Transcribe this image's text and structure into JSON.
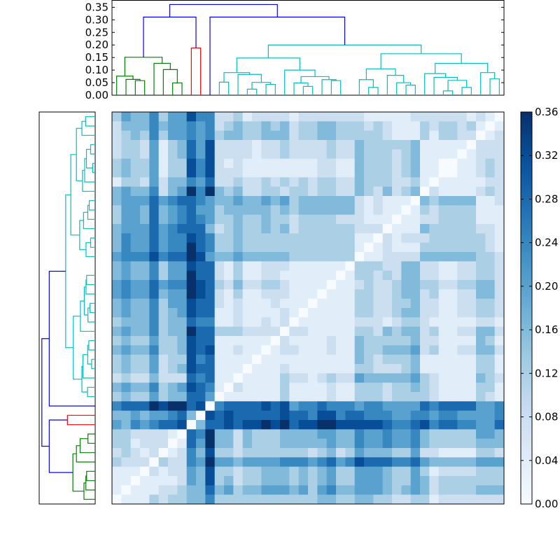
{
  "chart_data": {
    "type": "heatmap",
    "title": "",
    "description_free": true,
    "n_leaves": 42,
    "value_step": 0.04,
    "colormap": [
      "#f7fbff",
      "#deebf7",
      "#c6dbef",
      "#9ecae1",
      "#6baed6",
      "#4292c6",
      "#2171b5",
      "#08519c",
      "#08306b"
    ],
    "vmin": 0.0,
    "vmax": 0.36,
    "matrix_levels": [
      "354463558662231222212222222111112222221210",
      "244464556562343343423344333232111323323101",
      "234363556563443344423344333332111313322012",
      "233251347582222122322223224333334111110222",
      "233251347582222122322223224333234111101222",
      "343351338682121111111122114333234110011232",
      "343351338682221111111122114333234110011232",
      "133252446572232232323233224333223101111122",
      "454462459694342233233233224324234021111232",
      "455575677654454454534444442121110434444112",
      "355474567553444443434444442121101323333111",
      "355474567653343343323333222111011223333111",
      "455575677742343343423333332220111433333221",
      "465575668763343333333333331102122233333321",
      "465575669763343333333333331012111333333321",
      "566686779854454444433333330112222444444332",
      "454463558772131122211111103332244221122332",
      "454463559772131122111111013323244221122332",
      "565575669873242233211110112322344332233442",
      "565574559872131122211101113322344231122442",
      "454463558772121112111011113322334221122332",
      "454463458771121111210111113322344221122332",
      "344463447661121121201111112221233211111221",
      "454463449773332222022111113324344231122442",
      "343353348771111110211112114333334221111431",
      "454463348781121101221112114334445231122442",
      "343352338671111011111111114323334111111331",
      "343352348771110111211111113322234111111331",
      "232242227671101111322123225444445321111432",
      "454463458761021111311112113332334321111331",
      "343353447750111111311112113332333321111321",
      "677798997806777787856676665665555767777556",
      "445455674087877777877688677666556656655556",
      "546567780477878898978899888887667867766557",
      "332222107694424333444455446556556433333554",
      "331222017594424333444445446556556433333444",
      "232120126483323333333234235444335221111332",
      "322203226595545555666567568777667544444555",
      "111021225483323344434345335554335312222333",
      "110111125483423344434345335554335423333333",
      "101112234474534455545356445554345423333444",
      "011132334463333333333344334433223312222222"
    ],
    "dendrogram": {
      "height_range": [
        0,
        0.379
      ],
      "colors": {
        "g": "#008000",
        "r": "#ff0000",
        "c": "#00bfbf",
        "b": "#0000ff"
      },
      "links": [
        [
          2,
          3,
          0,
          0,
          0.058,
          "g"
        ],
        [
          1,
          2.5,
          0,
          0.058,
          0.063,
          "g"
        ],
        [
          0,
          1.75,
          0,
          0.063,
          0.076,
          "g"
        ],
        [
          6,
          7,
          0,
          0,
          0.049,
          "g"
        ],
        [
          5,
          6.5,
          0,
          0.049,
          0.102,
          "g"
        ],
        [
          4,
          5.75,
          0,
          0.102,
          0.127,
          "g"
        ],
        [
          0.875,
          4.875,
          0.076,
          0.127,
          0.151,
          "g"
        ],
        [
          8,
          9,
          0,
          0,
          0.188,
          "r"
        ],
        [
          2.875,
          8.5,
          0.151,
          0.188,
          0.311,
          "b"
        ],
        [
          11,
          12,
          0,
          0,
          0.052,
          "c"
        ],
        [
          14,
          15,
          0,
          0,
          0.024,
          "c"
        ],
        [
          16,
          17,
          0,
          0,
          0.043,
          "c"
        ],
        [
          14.5,
          16.5,
          0.024,
          0.043,
          0.051,
          "c"
        ],
        [
          13,
          15.5,
          0,
          0.051,
          0.083,
          "c"
        ],
        [
          11.5,
          14.25,
          0.052,
          0.083,
          0.09,
          "c"
        ],
        [
          20,
          21,
          0,
          0,
          0.035,
          "c"
        ],
        [
          19,
          20.5,
          0,
          0.035,
          0.049,
          "c"
        ],
        [
          23,
          24,
          0,
          0,
          0.058,
          "c"
        ],
        [
          22,
          23.5,
          0,
          0.058,
          0.062,
          "c"
        ],
        [
          19.75,
          22.75,
          0.049,
          0.062,
          0.074,
          "c"
        ],
        [
          18,
          21.25,
          0,
          0.074,
          0.1,
          "c"
        ],
        [
          12.875,
          19.625,
          0.09,
          0.1,
          0.148,
          "c"
        ],
        [
          27,
          28,
          0,
          0,
          0.031,
          "c"
        ],
        [
          26,
          27.5,
          0,
          0.031,
          0.062,
          "c"
        ],
        [
          31,
          32,
          0,
          0,
          0.04,
          "c"
        ],
        [
          30,
          31.5,
          0,
          0.04,
          0.05,
          "c"
        ],
        [
          29,
          30.75,
          0,
          0.05,
          0.079,
          "c"
        ],
        [
          26.75,
          29.875,
          0.062,
          0.079,
          0.105,
          "c"
        ],
        [
          35,
          36,
          0,
          0,
          0.017,
          "c"
        ],
        [
          37,
          38,
          0,
          0,
          0.031,
          "c"
        ],
        [
          35.5,
          37.5,
          0.017,
          0.031,
          0.059,
          "c"
        ],
        [
          34,
          36.5,
          0,
          0.059,
          0.071,
          "c"
        ],
        [
          33,
          35.25,
          0,
          0.071,
          0.086,
          "c"
        ],
        [
          40,
          41,
          0,
          0,
          0.065,
          "c"
        ],
        [
          39,
          40.5,
          0,
          0.065,
          0.09,
          "c"
        ],
        [
          34.125,
          39.75,
          0.086,
          0.09,
          0.127,
          "c"
        ],
        [
          28.3125,
          36.9375,
          0.105,
          0.127,
          0.165,
          "c"
        ],
        [
          16.25,
          32.625,
          0.148,
          0.165,
          0.2,
          "c"
        ],
        [
          10,
          24.4375,
          0,
          0.2,
          0.311,
          "b"
        ],
        [
          5.6875,
          17.21875,
          0.311,
          0.311,
          0.361,
          "b"
        ]
      ],
      "ytick_values": [
        0.0,
        0.05,
        0.1,
        0.15,
        0.2,
        0.25,
        0.3,
        0.35
      ],
      "ytick_labels": [
        "0.00",
        "0.05",
        "0.10",
        "0.15",
        "0.20",
        "0.25",
        "0.30",
        "0.35"
      ]
    },
    "colorbar": {
      "tick_values": [
        0.0,
        0.04,
        0.08,
        0.12,
        0.16,
        0.2,
        0.24,
        0.28,
        0.32,
        0.36
      ],
      "tick_labels": [
        "0.00",
        "0.04",
        "0.08",
        "0.12",
        "0.16",
        "0.20",
        "0.24",
        "0.28",
        "0.32",
        "0.36"
      ]
    }
  }
}
